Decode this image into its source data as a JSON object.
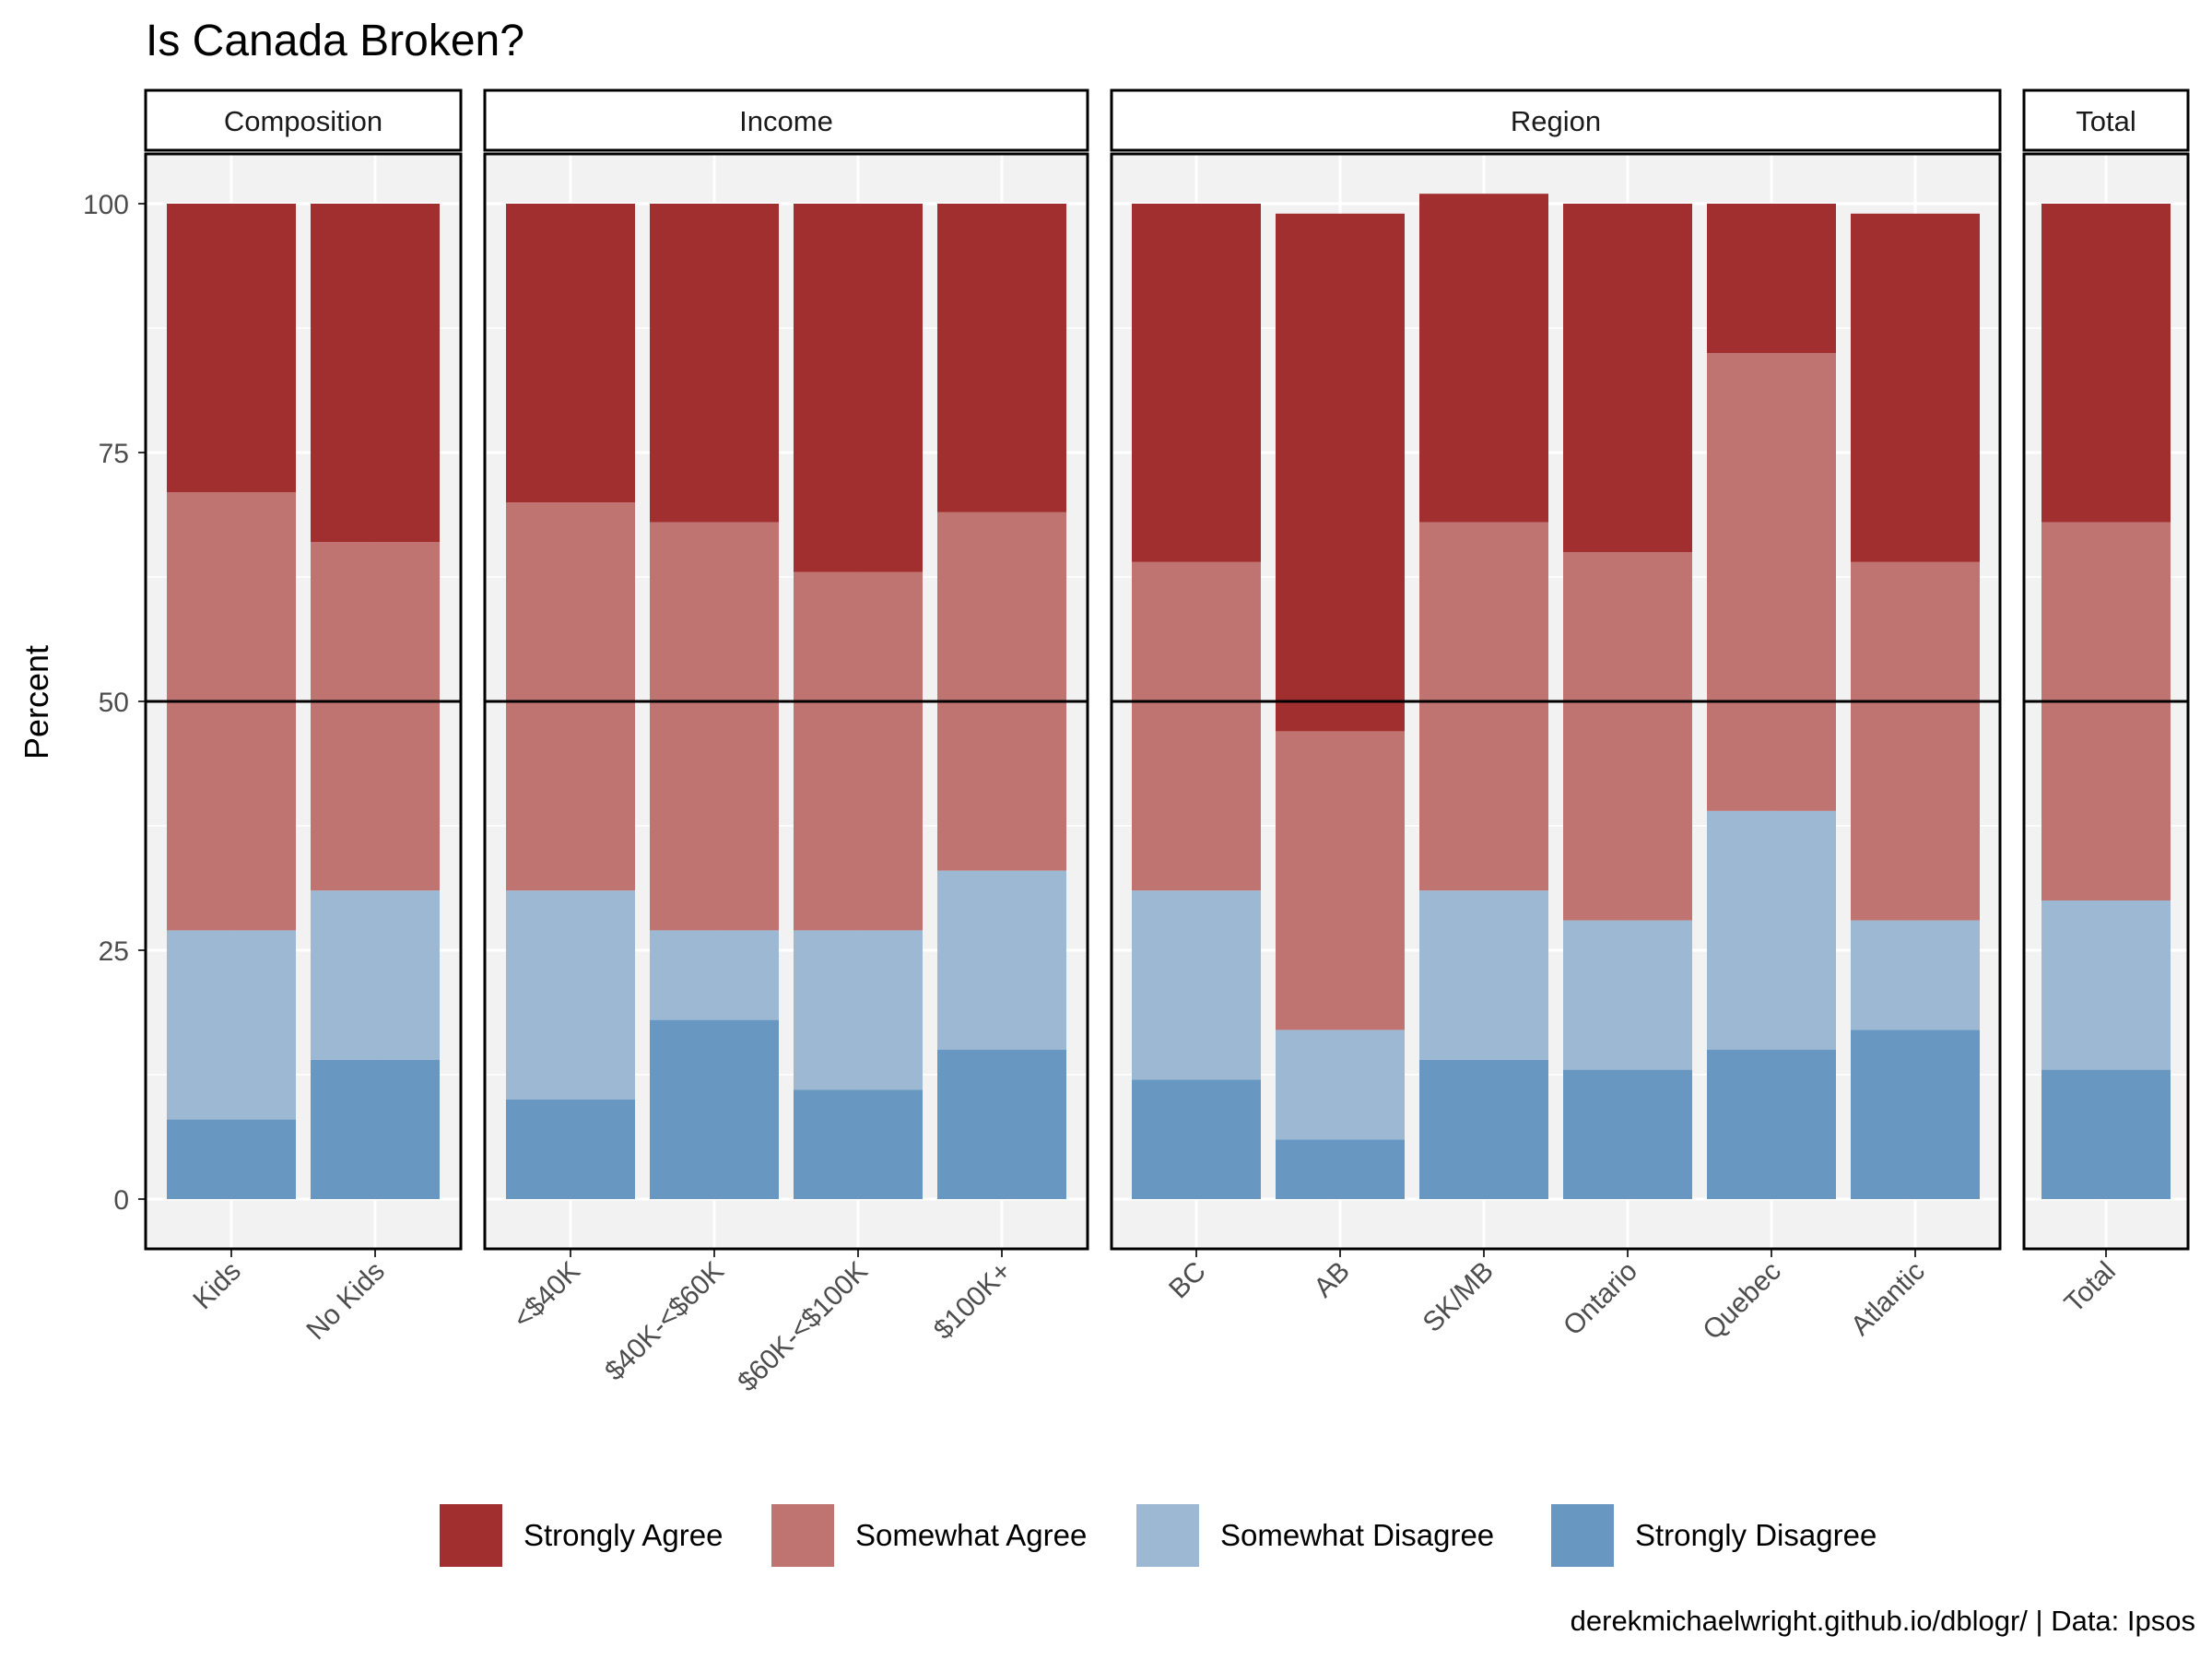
{
  "chart_data": {
    "type": "bar",
    "stacked": true,
    "title": "Is Canada Broken?",
    "ylabel": "Percent",
    "xlabel": "",
    "ylim": [
      -5,
      105
    ],
    "yticks": [
      0,
      25,
      50,
      75,
      100
    ],
    "reference_line": 50,
    "caption": "derekmichaelwright.github.io/dblogr/ | Data: Ipsos",
    "legend": {
      "position": "bottom",
      "entries": [
        "Strongly Agree",
        "Somewhat Agree",
        "Somewhat Disagree",
        "Strongly Disagree"
      ]
    },
    "colors": {
      "Strongly Agree": "#a12f30",
      "Somewhat Agree": "#c07472",
      "Somewhat Disagree": "#9cb8d3",
      "Strongly Disagree": "#6898c1"
    },
    "facets": [
      {
        "name": "Composition",
        "categories": [
          "Kids",
          "No Kids"
        ],
        "series": [
          {
            "name": "Strongly Disagree",
            "values": [
              8,
              14
            ]
          },
          {
            "name": "Somewhat Disagree",
            "values": [
              19,
              17
            ]
          },
          {
            "name": "Somewhat Agree",
            "values": [
              44,
              35
            ]
          },
          {
            "name": "Strongly Agree",
            "values": [
              29,
              34
            ]
          }
        ]
      },
      {
        "name": "Income",
        "categories": [
          "<$40K",
          "$40K-<$60K",
          "$60K-<$100K",
          "$100K+"
        ],
        "series": [
          {
            "name": "Strongly Disagree",
            "values": [
              10,
              18,
              11,
              15
            ]
          },
          {
            "name": "Somewhat Disagree",
            "values": [
              21,
              9,
              16,
              18
            ]
          },
          {
            "name": "Somewhat Agree",
            "values": [
              39,
              41,
              36,
              36
            ]
          },
          {
            "name": "Strongly Agree",
            "values": [
              30,
              32,
              37,
              31
            ]
          }
        ]
      },
      {
        "name": "Region",
        "categories": [
          "BC",
          "AB",
          "SK/MB",
          "Ontario",
          "Quebec",
          "Atlantic"
        ],
        "series": [
          {
            "name": "Strongly Disagree",
            "values": [
              12,
              6,
              14,
              13,
              15,
              17
            ]
          },
          {
            "name": "Somewhat Disagree",
            "values": [
              19,
              11,
              17,
              15,
              24,
              11
            ]
          },
          {
            "name": "Somewhat Agree",
            "values": [
              33,
              30,
              37,
              37,
              46,
              36
            ]
          },
          {
            "name": "Strongly Agree",
            "values": [
              36,
              52,
              33,
              35,
              15,
              35
            ]
          }
        ]
      },
      {
        "name": "Total",
        "categories": [
          "Total"
        ],
        "series": [
          {
            "name": "Strongly Disagree",
            "values": [
              13
            ]
          },
          {
            "name": "Somewhat Disagree",
            "values": [
              17
            ]
          },
          {
            "name": "Somewhat Agree",
            "values": [
              38
            ]
          },
          {
            "name": "Strongly Agree",
            "values": [
              32
            ]
          }
        ]
      }
    ]
  }
}
